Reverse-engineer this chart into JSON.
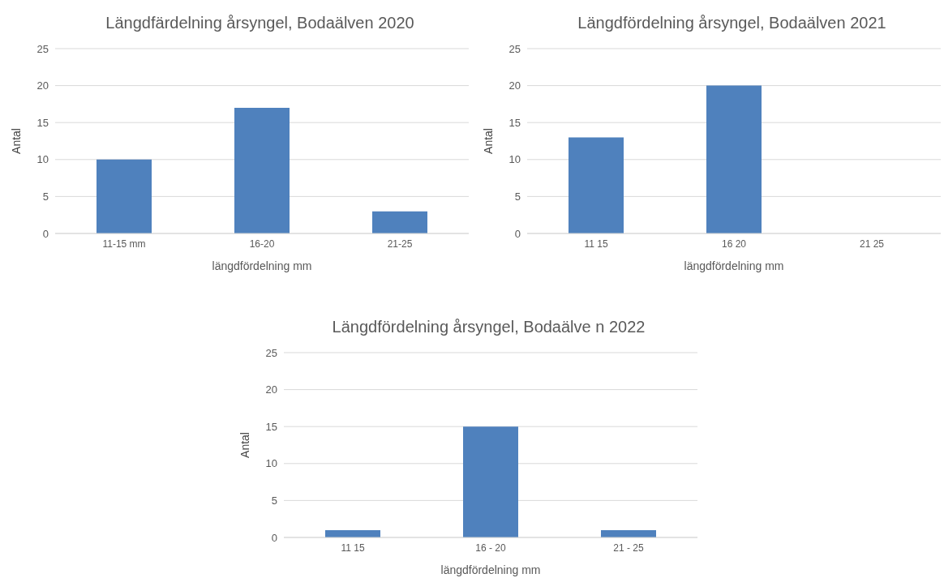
{
  "chart_data": [
    {
      "type": "bar",
      "title": "Längdfärdelning årsyngel, Bodaälven 2020",
      "xlabel": "längdfördelning mm",
      "ylabel": "Antal",
      "categories": [
        "11-15 mm",
        "16-20",
        "21-25"
      ],
      "values": [
        10,
        17,
        3
      ],
      "color": "#4f81bd",
      "ylim": [
        0,
        25
      ],
      "yticks": [
        0,
        5,
        10,
        15,
        20,
        25
      ],
      "grid": "y"
    },
    {
      "type": "bar",
      "title": "Längdfördelning årsyngel, Bodaälven 2021",
      "xlabel": "längdfördelning mm",
      "ylabel": "Antal",
      "categories": [
        "11 15",
        "16 20",
        "21 25"
      ],
      "values": [
        13,
        20,
        0
      ],
      "color": "#4f81bd",
      "ylim": [
        0,
        25
      ],
      "yticks": [
        0,
        5,
        10,
        15,
        20,
        25
      ],
      "grid": "y"
    },
    {
      "type": "bar",
      "title": "Längdfördelning årsyngel, Bodaälve n 2022",
      "xlabel": "längdfördelning mm",
      "ylabel": "Antal",
      "categories": [
        "11 15",
        "16 - 20",
        "21 - 25"
      ],
      "values": [
        1,
        15,
        1
      ],
      "color": "#4f81bd",
      "ylim": [
        0,
        25
      ],
      "yticks": [
        0,
        5,
        10,
        15,
        20,
        25
      ],
      "grid": "y"
    }
  ]
}
